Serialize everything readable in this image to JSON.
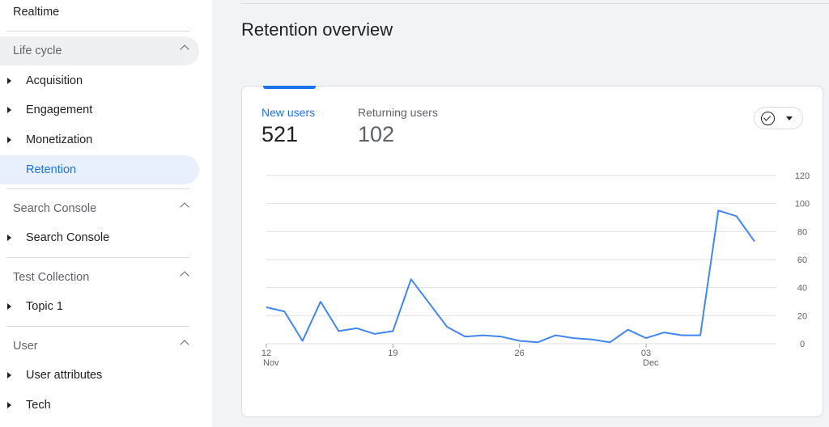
{
  "sidebar": {
    "realtime": "Realtime",
    "lifecycle": {
      "label": "Life cycle",
      "items": [
        "Acquisition",
        "Engagement",
        "Monetization"
      ],
      "active": "Retention"
    },
    "search_console": {
      "label": "Search Console",
      "items": [
        "Search Console"
      ]
    },
    "test_collection": {
      "label": "Test Collection",
      "items": [
        "Topic 1"
      ]
    },
    "user": {
      "label": "User",
      "items": [
        "User attributes",
        "Tech"
      ]
    }
  },
  "page": {
    "title": "Retention overview"
  },
  "card": {
    "new_users_label": "New users",
    "new_users_value": "521",
    "returning_users_label": "Returning users",
    "returning_users_value": "102",
    "compare_icon": "check-circle-icon",
    "dropdown_icon": "dropdown-arrow-icon"
  },
  "colors": {
    "accent": "#1a73e8",
    "line": "#4285f4"
  },
  "chart_data": {
    "type": "line",
    "ylim": [
      0,
      120
    ],
    "yticks": [
      0,
      20,
      40,
      60,
      80,
      100,
      120
    ],
    "xticks": [
      {
        "index": 0,
        "label": "12",
        "sub": "Nov"
      },
      {
        "index": 7,
        "label": "19",
        "sub": ""
      },
      {
        "index": 14,
        "label": "26",
        "sub": ""
      },
      {
        "index": 21,
        "label": "03",
        "sub": "Dec"
      }
    ],
    "series": [
      {
        "values": [
          26,
          23,
          2,
          30,
          9,
          11,
          7,
          9,
          46,
          29,
          12,
          5,
          6,
          5,
          2,
          1,
          6,
          4,
          3,
          1,
          10,
          4,
          8,
          6,
          6,
          95,
          91,
          73
        ]
      }
    ]
  }
}
